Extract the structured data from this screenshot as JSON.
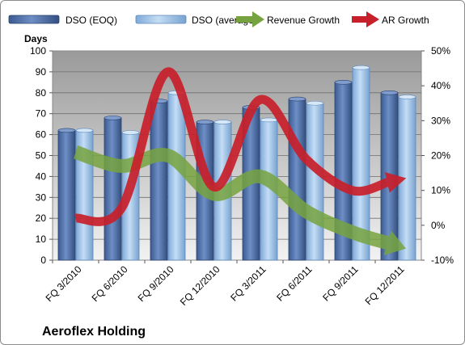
{
  "chart_data": {
    "type": "bar",
    "company": "Aeroflex Holding",
    "ylabel": "Days",
    "ylim": [
      0,
      100
    ],
    "y_ticks": [
      "0",
      "10",
      "20",
      "30",
      "40",
      "50",
      "60",
      "70",
      "80",
      "90",
      "100"
    ],
    "y2lim": [
      -10,
      50
    ],
    "y2_ticks": [
      "-10%",
      "0%",
      "10%",
      "20%",
      "30%",
      "40%",
      "50%"
    ],
    "categories": [
      "FQ 3/2010",
      "FQ 6/2010",
      "FQ 9/2010",
      "FQ 12/2010",
      "FQ 3/2011",
      "FQ 6/2011",
      "FQ 9/2011",
      "FQ 12/2011"
    ],
    "series": [
      {
        "name": "DSO (EOQ)",
        "type": "bar",
        "axis": "left",
        "color": "#4f6fa8",
        "values": [
          62,
          68,
          76,
          66,
          73,
          77,
          85,
          80
        ]
      },
      {
        "name": "DSO (average)",
        "type": "bar",
        "axis": "left",
        "color": "#9ec3e8",
        "values": [
          62,
          61,
          80,
          66,
          67,
          75,
          92,
          78
        ]
      },
      {
        "name": "Revenue Growth",
        "type": "line-arrow",
        "axis": "right",
        "color": "#77a33f",
        "values": [
          21,
          17,
          20,
          9,
          14,
          4,
          -2,
          -6
        ]
      },
      {
        "name": "AR Growth",
        "type": "line-arrow",
        "axis": "right",
        "color": "#c8202a",
        "values": [
          2,
          5,
          44,
          11,
          36,
          19,
          10,
          13
        ]
      }
    ],
    "legend_position": "top",
    "grid": true
  }
}
